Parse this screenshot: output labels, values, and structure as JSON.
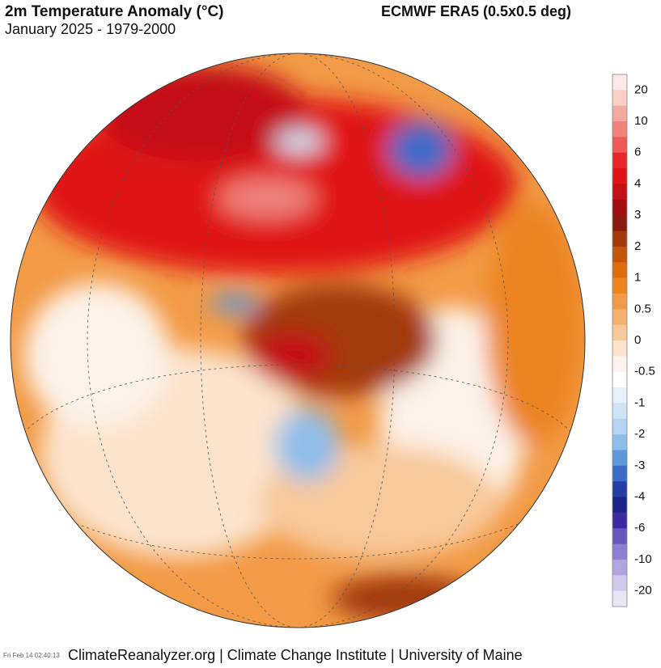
{
  "header": {
    "title": "2m Temperature Anomaly (°C)",
    "subtitle": "January 2025 - 1979-2000",
    "source": "ECMWF ERA5 (0.5x0.5 deg)"
  },
  "colorbar": {
    "labels": [
      20,
      10,
      6,
      4,
      3,
      2,
      1,
      0.5,
      0,
      -0.5,
      -1,
      -2,
      -3,
      -4,
      -6,
      -10,
      -20
    ],
    "colors": [
      "#fbe9e7",
      "#f8d0c8",
      "#f4a9a0",
      "#f0827a",
      "#ee5a55",
      "#e8262a",
      "#e01418",
      "#c40f16",
      "#a30d12",
      "#8a1a0c",
      "#a43a0c",
      "#c4560c",
      "#dd6c0e",
      "#ec8420",
      "#f29a45",
      "#f5b06d",
      "#f8c99b",
      "#fbe3cc",
      "#fdf3ea",
      "#ffffff",
      "#e6f0fa",
      "#cfe2f6",
      "#b4d2f1",
      "#8fbdea",
      "#5f97dc",
      "#3b6cc8",
      "#233fa6",
      "#1c258a",
      "#3a2ba0",
      "#6a55bd",
      "#8f7dcf",
      "#b3a3de",
      "#d2c7ea",
      "#ebe4f4"
    ]
  },
  "footer": {
    "credit": "ClimateReanalyzer.org | Climate Change Institute | University of Maine",
    "timestamp": "Fri Feb 14 02:40:13"
  }
}
